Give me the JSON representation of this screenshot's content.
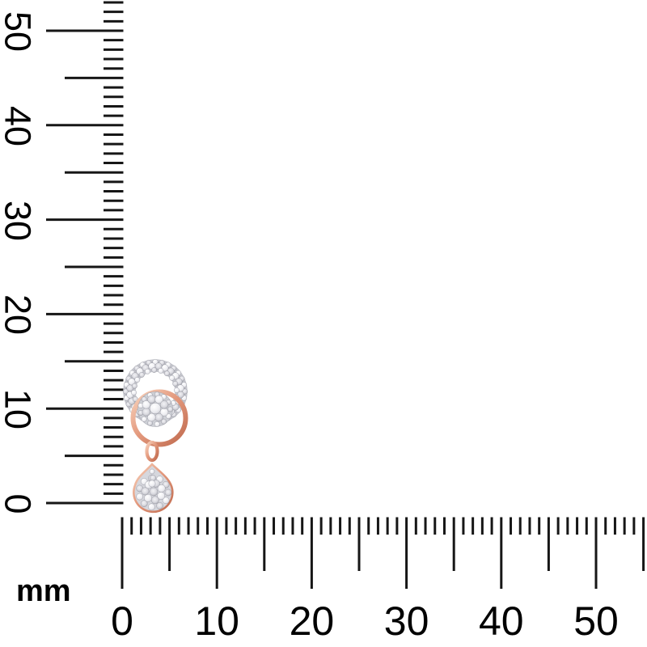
{
  "page": {
    "description": "Product scale photo: rose gold diamond drop earring shown against vertical and horizontal millimeter rulers"
  },
  "unit": {
    "label": "mm"
  },
  "colors": {
    "background": "#ffffff",
    "tick": "#161616",
    "text": "#000000"
  },
  "vertical_ruler": {
    "orientation": "vertical",
    "unit": "mm",
    "min_mm": 0,
    "max_mm": 53,
    "minor_step_mm": 1,
    "medium_step_mm": 5,
    "major_step_mm": 10,
    "labels": [
      "0",
      "10",
      "20",
      "30",
      "40",
      "50"
    ],
    "label_values": [
      0,
      10,
      20,
      30,
      40,
      50
    ]
  },
  "horizontal_ruler": {
    "orientation": "horizontal",
    "unit": "mm",
    "min_mm": 0,
    "max_mm": 55,
    "minor_step_mm": 1,
    "medium_step_mm": 5,
    "major_step_mm": 10,
    "labels": [
      "0",
      "10",
      "20",
      "30",
      "40",
      "50"
    ],
    "label_values": [
      0,
      10,
      20,
      30,
      40,
      50
    ]
  },
  "product": {
    "name": "rose-gold-diamond-interlocked-circle-drop-earring",
    "description": "Earring with pave diamond open circle interlocked with a polished rose gold circle, round diamond cluster center and pear-shaped diamond cluster drop",
    "approx_width_mm": 7,
    "approx_height_mm": 16,
    "colors": {
      "rose_gold_light": "#f8d3bd",
      "rose_gold": "#e49a7e",
      "rose_gold_dark": "#c06a4e",
      "diamond_light": "#ffffff",
      "diamond_mid": "#d8d8de",
      "diamond_dark": "#9b9ca6",
      "pave_base": "#c6c7ce",
      "cluster_base": "#ced0d6"
    }
  }
}
